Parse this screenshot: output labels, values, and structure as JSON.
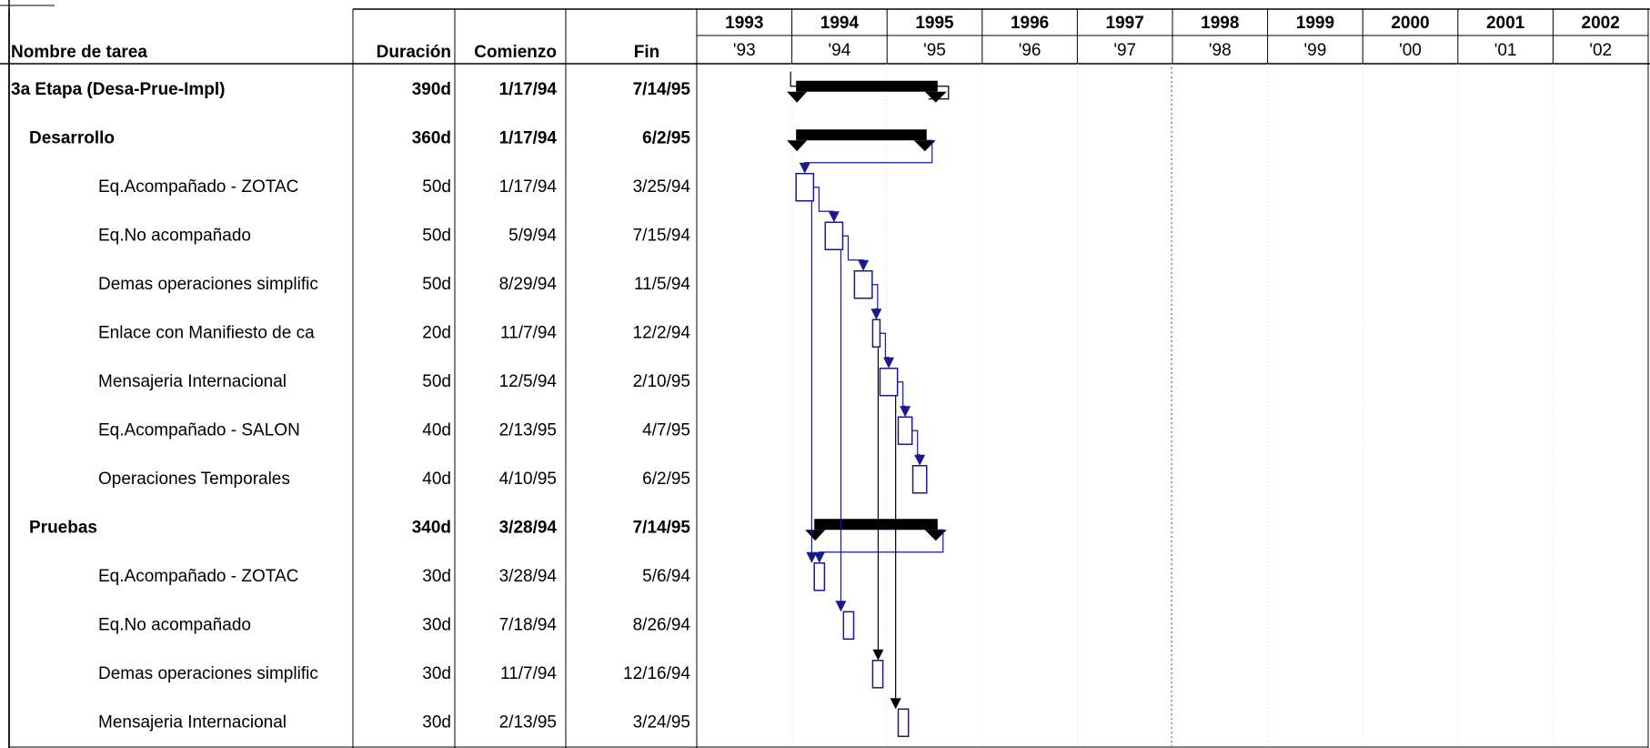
{
  "chart_data": {
    "type": "gantt",
    "columns": {
      "name": "Nombre de tarea",
      "duration": "Duración",
      "start": "Comienzo",
      "finish": "Fin"
    },
    "years": [
      "1993",
      "1994",
      "1995",
      "1996",
      "1997",
      "1998",
      "1999",
      "2000",
      "2001",
      "2002"
    ],
    "years_short": [
      "'93",
      "'94",
      "'95",
      "'96",
      "'97",
      "'98",
      "'99",
      "'00",
      "'01",
      "'02"
    ],
    "timeline": {
      "start": "1993-01-01",
      "end": "2003-01-01",
      "today_marker": "1998-01-01"
    },
    "tasks": [
      {
        "name": "3a Etapa (Desa-Prue-Impl)",
        "duration": "390d",
        "start": "1/17/94",
        "finish": "7/14/95",
        "level": 0,
        "summary": true
      },
      {
        "name": "Desarrollo",
        "duration": "360d",
        "start": "1/17/94",
        "finish": "6/2/95",
        "level": 1,
        "summary": true
      },
      {
        "name": "Eq.Acompañado - ZOTAC",
        "duration": "50d",
        "start": "1/17/94",
        "finish": "3/25/94",
        "level": 2,
        "summary": false
      },
      {
        "name": "Eq.No acompañado",
        "duration": "50d",
        "start": "5/9/94",
        "finish": "7/15/94",
        "level": 2,
        "summary": false
      },
      {
        "name": "Demas operaciones simplific",
        "duration": "50d",
        "start": "8/29/94",
        "finish": "11/5/94",
        "level": 2,
        "summary": false
      },
      {
        "name": "Enlace con Manifiesto de ca",
        "duration": "20d",
        "start": "11/7/94",
        "finish": "12/2/94",
        "level": 2,
        "summary": false
      },
      {
        "name": "Mensajeria Internacional",
        "duration": "50d",
        "start": "12/5/94",
        "finish": "2/10/95",
        "level": 2,
        "summary": false
      },
      {
        "name": "Eq.Acompañado - SALON",
        "duration": "40d",
        "start": "2/13/95",
        "finish": "4/7/95",
        "level": 2,
        "summary": false
      },
      {
        "name": "Operaciones Temporales",
        "duration": "40d",
        "start": "4/10/95",
        "finish": "6/2/95",
        "level": 2,
        "summary": false
      },
      {
        "name": "Pruebas",
        "duration": "340d",
        "start": "3/28/94",
        "finish": "7/14/95",
        "level": 1,
        "summary": true
      },
      {
        "name": "Eq.Acompañado - ZOTAC",
        "duration": "30d",
        "start": "3/28/94",
        "finish": "5/6/94",
        "level": 2,
        "summary": false
      },
      {
        "name": "Eq.No acompañado",
        "duration": "30d",
        "start": "7/18/94",
        "finish": "8/26/94",
        "level": 2,
        "summary": false
      },
      {
        "name": "Demas operaciones simplific",
        "duration": "30d",
        "start": "11/7/94",
        "finish": "12/16/94",
        "level": 2,
        "summary": false
      },
      {
        "name": "Mensajeria Internacional",
        "duration": "30d",
        "start": "2/13/95",
        "finish": "3/24/95",
        "level": 2,
        "summary": false
      }
    ],
    "colors": {
      "summary_bar": "#000000",
      "task_bar": "#1a1a8c",
      "task_fill": "#ffffff",
      "grid": "#d0d0d0",
      "today_line": "#888888"
    }
  }
}
